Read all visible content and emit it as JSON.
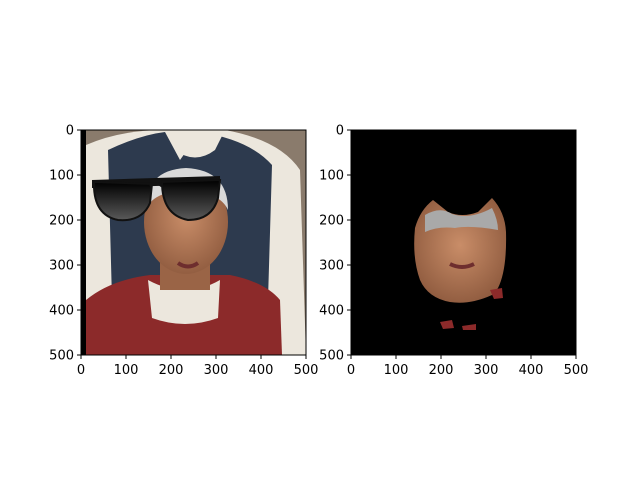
{
  "panels": [
    {
      "name": "left",
      "content": "photo with sunglasses overlay",
      "xlim": [
        0,
        500
      ],
      "ylim": [
        500,
        0
      ],
      "xticks": [
        0,
        100,
        200,
        300,
        400,
        500
      ],
      "yticks": [
        0,
        100,
        200,
        300,
        400,
        500
      ],
      "xtick_labels": [
        "0",
        "100",
        "200",
        "300",
        "400",
        "500"
      ],
      "ytick_labels": [
        "0",
        "100",
        "200",
        "300",
        "400",
        "500"
      ]
    },
    {
      "name": "right",
      "content": "masked face on black background",
      "xlim": [
        0,
        500
      ],
      "ylim": [
        500,
        0
      ],
      "xticks": [
        0,
        100,
        200,
        300,
        400,
        500
      ],
      "yticks": [
        0,
        100,
        200,
        300,
        400,
        500
      ],
      "xtick_labels": [
        "0",
        "100",
        "200",
        "300",
        "400",
        "500"
      ],
      "ytick_labels": [
        "0",
        "100",
        "200",
        "300",
        "400",
        "500"
      ]
    }
  ],
  "colors": {
    "background_wall": "#8a7b6c",
    "vest_dark": "#2d3a4e",
    "shirt_white": "#ece7dd",
    "vest_red": "#8c2a2a",
    "skin": "#b07a5a",
    "hair_gray": "#d9d9d9",
    "sunglasses": "#111111",
    "mask_black": "#000000"
  }
}
